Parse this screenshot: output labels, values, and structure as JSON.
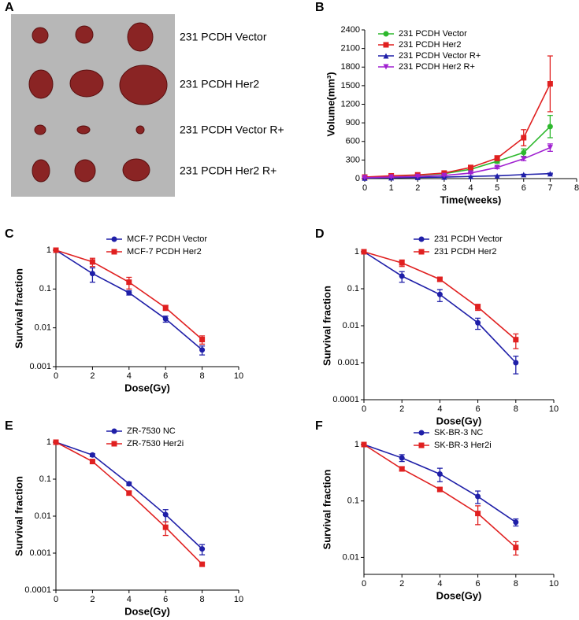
{
  "photo": {
    "panel": "A",
    "labels": [
      "231 PCDH Vector",
      "231 PCDH Her2",
      "231 PCDH Vector R+",
      "231 PCDH Her2 R+"
    ]
  },
  "chart_data": [
    {
      "type": "line",
      "panel": "B",
      "xlabel": "Time(weeks)",
      "ylabel": "Volume(mm³)",
      "log_scale": false,
      "x": [
        0,
        1,
        2,
        3,
        4,
        5,
        6,
        7
      ],
      "xlim": [
        0,
        8
      ],
      "xticks": [
        0,
        1,
        2,
        3,
        4,
        5,
        6,
        7,
        8
      ],
      "ylim": [
        0,
        2400
      ],
      "yticks": [
        0,
        300,
        600,
        900,
        1200,
        1500,
        1800,
        2100,
        2400
      ],
      "legend": "upper left",
      "series": [
        {
          "name": "231 PCDH Vector",
          "color": "#2db82d",
          "marker": "circle",
          "values": [
            20,
            40,
            55,
            80,
            150,
            280,
            420,
            840
          ],
          "errors": [
            5,
            5,
            8,
            10,
            20,
            30,
            60,
            180
          ]
        },
        {
          "name": "231 PCDH Her2",
          "color": "#e02020",
          "marker": "square",
          "values": [
            25,
            45,
            60,
            90,
            180,
            330,
            660,
            1530
          ],
          "errors": [
            5,
            5,
            8,
            12,
            25,
            40,
            130,
            450
          ]
        },
        {
          "name": "231 PCDH Vector R+",
          "color": "#1f1fa8",
          "marker": "triangle",
          "values": [
            10,
            15,
            20,
            25,
            35,
            45,
            65,
            80
          ],
          "errors": [
            2,
            2,
            3,
            3,
            4,
            5,
            6,
            8
          ]
        },
        {
          "name": "231 PCDH Her2  R+",
          "color": "#a020d0",
          "marker": "tri-down",
          "values": [
            15,
            25,
            35,
            50,
            90,
            180,
            320,
            500
          ],
          "errors": [
            3,
            4,
            5,
            8,
            12,
            20,
            30,
            60
          ]
        }
      ]
    },
    {
      "type": "line",
      "panel": "C",
      "xlabel": "Dose(Gy)",
      "ylabel": "Survival fraction",
      "log_scale": true,
      "x": [
        0,
        2,
        4,
        6,
        8
      ],
      "xlim": [
        0,
        10
      ],
      "xticks": [
        0,
        2,
        4,
        6,
        8,
        10
      ],
      "ylim": [
        0.001,
        1
      ],
      "yticks": [
        0.001,
        0.01,
        0.1,
        1
      ],
      "legend": "upper center",
      "series": [
        {
          "name": "MCF-7 PCDH Vector",
          "color": "#1f1fa8",
          "marker": "circle",
          "values": [
            1,
            0.25,
            0.08,
            0.017,
            0.0027
          ],
          "errors": [
            0,
            0.1,
            0.01,
            0.003,
            0.0007
          ]
        },
        {
          "name": "MCF-7 PCDH Her2",
          "color": "#e02020",
          "marker": "square",
          "values": [
            1,
            0.5,
            0.15,
            0.033,
            0.005
          ],
          "errors": [
            0,
            0.12,
            0.05,
            0.005,
            0.0012
          ]
        }
      ]
    },
    {
      "type": "line",
      "panel": "D",
      "xlabel": "Dose(Gy)",
      "ylabel": "Survival fraction",
      "log_scale": true,
      "x": [
        0,
        2,
        4,
        6,
        8
      ],
      "xlim": [
        0,
        10
      ],
      "xticks": [
        0,
        2,
        4,
        6,
        8,
        10
      ],
      "ylim": [
        0.0001,
        1
      ],
      "yticks": [
        0.0001,
        0.001,
        0.01,
        0.1,
        1
      ],
      "legend": "upper center",
      "series": [
        {
          "name": "231 PCDH Vector",
          "color": "#1f1fa8",
          "marker": "circle",
          "values": [
            1,
            0.22,
            0.07,
            0.012,
            0.001
          ],
          "errors": [
            0,
            0.07,
            0.025,
            0.004,
            0.0005
          ]
        },
        {
          "name": "231 PCDH Her2",
          "color": "#e02020",
          "marker": "square",
          "values": [
            1,
            0.5,
            0.18,
            0.032,
            0.0042
          ],
          "errors": [
            0,
            0.1,
            0.02,
            0.006,
            0.0018
          ]
        }
      ]
    },
    {
      "type": "line",
      "panel": "E",
      "xlabel": "Dose(Gy)",
      "ylabel": "Survival fraction",
      "log_scale": true,
      "x": [
        0,
        2,
        4,
        6,
        8
      ],
      "xlim": [
        0,
        10
      ],
      "xticks": [
        0,
        2,
        4,
        6,
        8,
        10
      ],
      "ylim": [
        0.0001,
        1
      ],
      "yticks": [
        0.0001,
        0.001,
        0.01,
        0.1,
        1
      ],
      "legend": "upper center",
      "series": [
        {
          "name": "ZR-7530 NC",
          "color": "#1f1fa8",
          "marker": "circle",
          "values": [
            1,
            0.45,
            0.075,
            0.011,
            0.0013
          ],
          "errors": [
            0,
            0.04,
            0.008,
            0.004,
            0.0004
          ]
        },
        {
          "name": "ZR-7530 Her2i",
          "color": "#e02020",
          "marker": "square",
          "values": [
            1,
            0.3,
            0.042,
            0.005,
            0.0005
          ],
          "errors": [
            0,
            0.03,
            0.005,
            0.002,
            5e-05
          ]
        }
      ]
    },
    {
      "type": "line",
      "panel": "F",
      "xlabel": "Dose(Gy)",
      "ylabel": "Survival fraction",
      "log_scale": true,
      "x": [
        0,
        2,
        4,
        6,
        8
      ],
      "xlim": [
        0,
        10
      ],
      "xticks": [
        0,
        2,
        4,
        6,
        8,
        10
      ],
      "ylim": [
        0.005,
        1
      ],
      "yticks": [
        0.01,
        0.1,
        1
      ],
      "legend": "upper center",
      "series": [
        {
          "name": "SK-BR-3 NC",
          "color": "#1f1fa8",
          "marker": "circle",
          "values": [
            1,
            0.58,
            0.3,
            0.12,
            0.042
          ],
          "errors": [
            0,
            0.08,
            0.08,
            0.03,
            0.006
          ]
        },
        {
          "name": "SK-BR-3 Her2i",
          "color": "#e02020",
          "marker": "square",
          "values": [
            1,
            0.37,
            0.16,
            0.06,
            0.015
          ],
          "errors": [
            0,
            0.03,
            0.01,
            0.022,
            0.004
          ]
        }
      ]
    }
  ]
}
